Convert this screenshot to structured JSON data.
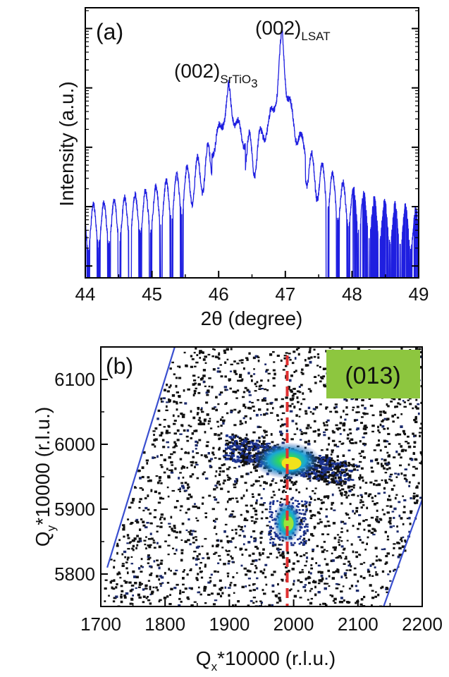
{
  "chart_data": [
    {
      "panel": "(a)",
      "type": "line",
      "xlabel": "2θ (degree)",
      "ylabel": "Intensity (a.u.)",
      "xlim": [
        44,
        49
      ],
      "x_ticks": [
        44,
        45,
        46,
        47,
        48,
        49
      ],
      "y_scale": "log",
      "y_ticks_labeled": false,
      "annotations": [
        {
          "main": "(002)",
          "sub": "SrTiO",
          "sub2": "3",
          "x": 46.15
        },
        {
          "main": "(002)",
          "sub": "LSAT",
          "sub2": "",
          "x": 46.95
        }
      ],
      "series": [
        {
          "color": "#1f1fe0",
          "envelope_log10": [
            [
              44.0,
              1.0
            ],
            [
              44.5,
              1.12
            ],
            [
              45.0,
              1.3
            ],
            [
              45.4,
              1.55
            ],
            [
              45.7,
              1.85
            ],
            [
              45.95,
              2.2
            ],
            [
              46.1,
              2.75
            ],
            [
              46.15,
              3.1
            ],
            [
              46.2,
              2.75
            ],
            [
              46.35,
              2.3
            ],
            [
              46.55,
              2.2
            ],
            [
              46.75,
              2.5
            ],
            [
              46.88,
              3.1
            ],
            [
              46.95,
              4.1
            ],
            [
              47.02,
              3.1
            ],
            [
              47.15,
              2.4
            ],
            [
              47.4,
              1.9
            ],
            [
              47.8,
              1.45
            ],
            [
              48.3,
              1.15
            ],
            [
              49.0,
              0.95
            ]
          ],
          "floor_log10": 0.0
        }
      ]
    },
    {
      "panel": "(b)",
      "type": "heatmap",
      "badge": "(013)",
      "xlabel_main": "Q",
      "xlabel_sub": "x",
      "xlabel_rest": "*10000 (r.l.u.)",
      "ylabel_main": "Q",
      "ylabel_sub": "y",
      "ylabel_rest": "*10000 (r.l.u.)",
      "xlim": [
        1700,
        2200
      ],
      "ylim": [
        5750,
        6150
      ],
      "x_ticks": [
        1700,
        1800,
        1900,
        2000,
        2100,
        2200
      ],
      "y_ticks": [
        5800,
        5900,
        6000,
        6100
      ],
      "vline_qx": 1990,
      "vline_color": "#e03030",
      "hotspots": [
        {
          "qx": 1990,
          "qy": 5975,
          "label": "upper"
        },
        {
          "qx": 1990,
          "qy": 5880,
          "label": "lower"
        }
      ],
      "boundary_lines": [
        {
          "from": [
            1710,
            5810
          ],
          "to": [
            1815,
            6150
          ]
        },
        {
          "from": [
            2140,
            5750
          ],
          "to": [
            2200,
            5915
          ]
        }
      ],
      "badge_color": "#8dc63f"
    }
  ]
}
